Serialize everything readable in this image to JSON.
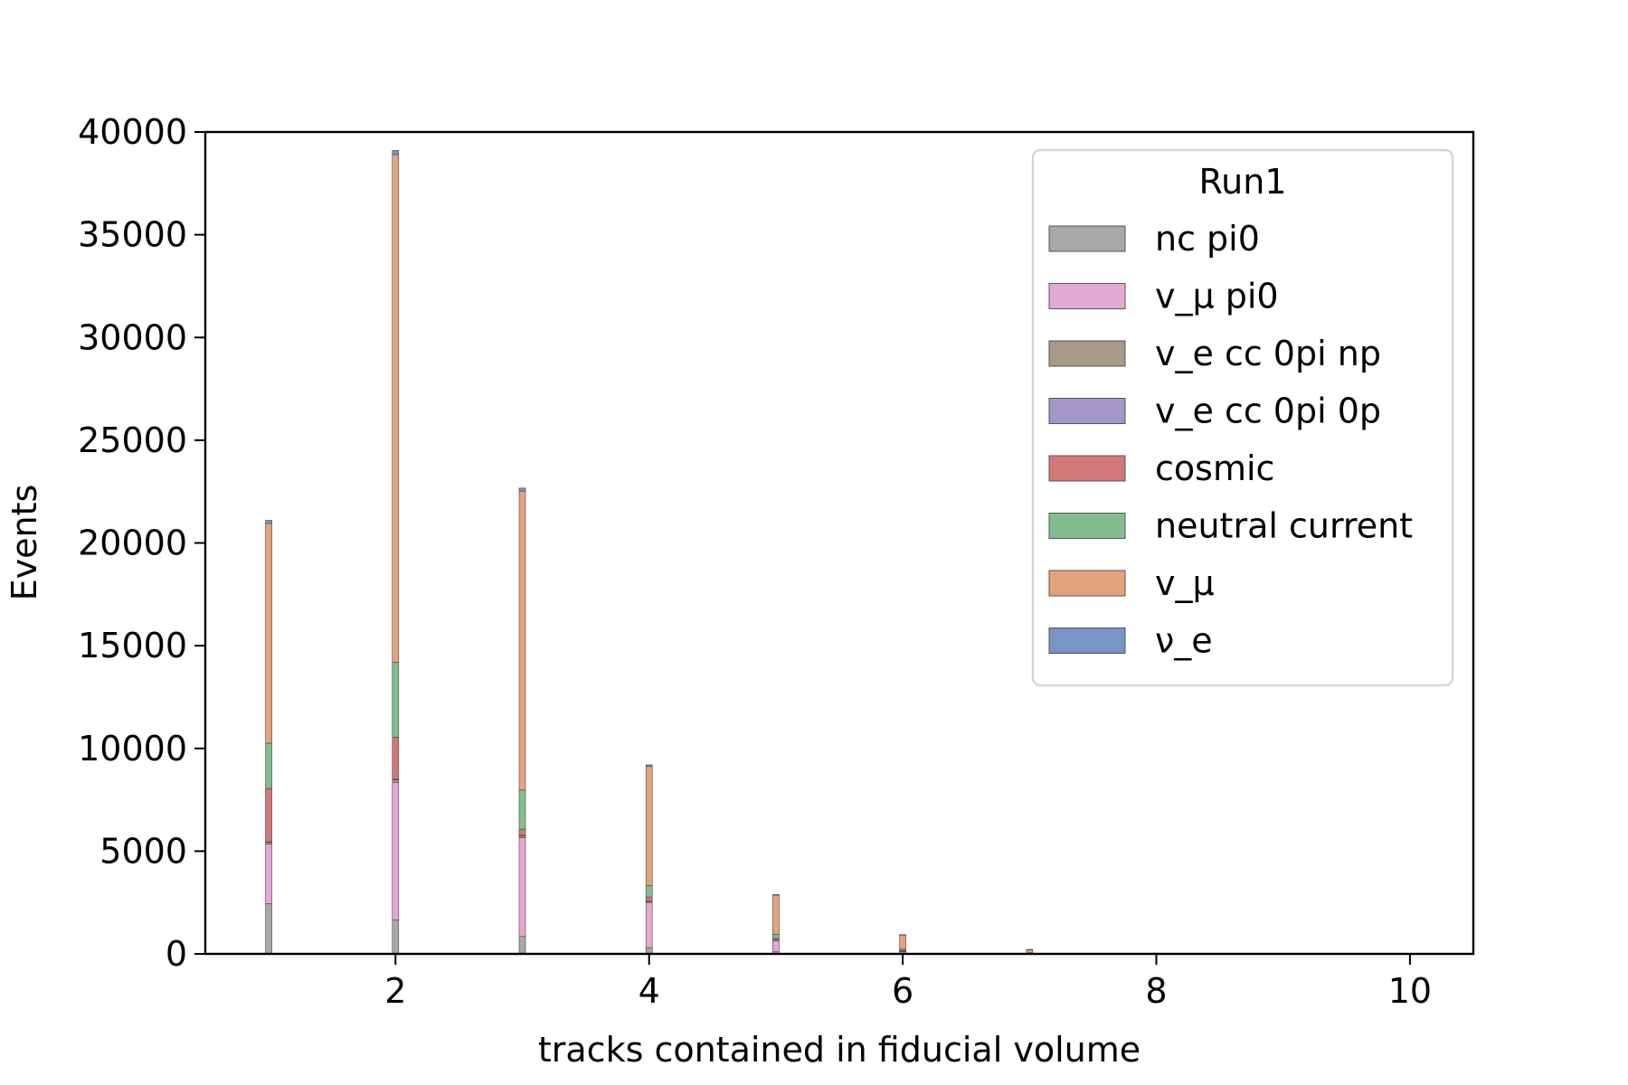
{
  "chart_data": {
    "type": "bar",
    "stacked": true,
    "xlabel": "tracks contained in fiducial volume",
    "ylabel": "Events",
    "xlim": [
      0.5,
      10.5
    ],
    "ylim": [
      0,
      40000
    ],
    "xticks": [
      2,
      4,
      6,
      8,
      10
    ],
    "yticks": [
      0,
      5000,
      10000,
      15000,
      20000,
      25000,
      30000,
      35000,
      40000
    ],
    "grid": false,
    "legend": {
      "title": "Run1",
      "placement": "top-right"
    },
    "categories": [
      1,
      2,
      3,
      4,
      5,
      6,
      7,
      8,
      9,
      10
    ],
    "series": [
      {
        "name": "nc pi0",
        "color": "#a8a8a8",
        "values": [
          2450,
          1650,
          850,
          300,
          100,
          40,
          10,
          2,
          0,
          0
        ]
      },
      {
        "name": "v_μ pi0",
        "color": "#e4a8d4",
        "values": [
          2900,
          6700,
          4800,
          2200,
          550,
          90,
          15,
          3,
          0,
          0
        ]
      },
      {
        "name": "v_e cc 0pi np",
        "color": "#ab9987",
        "values": [
          80,
          120,
          100,
          60,
          20,
          5,
          2,
          0,
          0,
          0
        ]
      },
      {
        "name": "v_e cc 0pi 0p",
        "color": "#a396c8",
        "values": [
          20,
          30,
          20,
          10,
          5,
          2,
          0,
          0,
          0,
          0
        ]
      },
      {
        "name": "cosmic",
        "color": "#d47777",
        "values": [
          2600,
          2050,
          300,
          200,
          80,
          30,
          10,
          2,
          0,
          0
        ]
      },
      {
        "name": "neutral current",
        "color": "#83bd8f",
        "values": [
          2200,
          3650,
          1900,
          550,
          200,
          60,
          15,
          3,
          0,
          0
        ]
      },
      {
        "name": "v_μ",
        "color": "#e5a37c",
        "values": [
          10700,
          24700,
          14550,
          5800,
          1900,
          700,
          160,
          30,
          5,
          1
        ]
      },
      {
        "name": "ν_e",
        "color": "#7895c6",
        "values": [
          150,
          200,
          150,
          80,
          30,
          10,
          3,
          0,
          0,
          0
        ]
      }
    ]
  }
}
